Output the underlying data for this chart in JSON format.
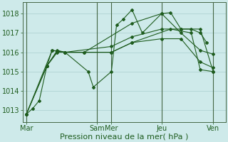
{
  "bg_color": "#ceeaea",
  "grid_color": "#aacece",
  "line_color": "#1e5c1e",
  "marker_color": "#1e5c1e",
  "xlabel": "Pression niveau de la mer( hPa )",
  "xlabel_fontsize": 8,
  "tick_fontsize": 7,
  "ylim": [
    1012.4,
    1018.6
  ],
  "yticks": [
    1013,
    1014,
    1015,
    1016,
    1017,
    1018
  ],
  "day_labels": [
    "Mar",
    "Sam",
    "Mer",
    "Jeu",
    "Ven"
  ],
  "day_positions": [
    0.0,
    5.5,
    6.6,
    10.5,
    14.5
  ],
  "xlim": [
    -0.3,
    15.5
  ],
  "vline_positions": [
    0.0,
    5.5,
    6.6,
    10.5,
    14.5
  ],
  "vline_color": "#446644",
  "series": [
    [
      0.0,
      1012.8,
      0.5,
      1013.1,
      1.0,
      1013.5,
      1.6,
      1015.3,
      2.0,
      1016.1,
      2.4,
      1016.05,
      3.0,
      1016.0,
      4.8,
      1015.0,
      5.2,
      1014.2,
      6.6,
      1015.0,
      7.0,
      1017.4,
      7.5,
      1017.7,
      8.2,
      1018.2,
      9.0,
      1017.0,
      10.5,
      1018.0,
      11.2,
      1018.05,
      12.0,
      1017.2,
      12.8,
      1017.2,
      13.5,
      1017.0,
      14.0,
      1016.5
    ],
    [
      0.0,
      1012.8,
      1.6,
      1015.3,
      2.4,
      1016.05,
      3.0,
      1016.0,
      6.6,
      1016.3,
      8.2,
      1016.8,
      10.5,
      1017.2,
      12.0,
      1017.2,
      13.5,
      1017.2,
      14.5,
      1015.0
    ],
    [
      0.0,
      1012.8,
      1.6,
      1015.3,
      2.4,
      1016.0,
      3.0,
      1016.0,
      6.6,
      1016.0,
      8.2,
      1016.5,
      10.5,
      1016.7,
      12.0,
      1016.7,
      13.5,
      1015.5,
      14.5,
      1015.2
    ],
    [
      0.0,
      1012.8,
      2.0,
      1016.1,
      3.0,
      1016.0,
      4.5,
      1016.0,
      6.6,
      1016.0,
      8.2,
      1016.5,
      11.2,
      1017.2,
      12.8,
      1017.0,
      13.5,
      1015.1,
      14.5,
      1015.0
    ],
    [
      1.6,
      1015.3,
      2.4,
      1016.1,
      3.0,
      1016.0,
      4.5,
      1016.0,
      8.2,
      1017.5,
      10.5,
      1018.0,
      12.0,
      1017.0,
      13.5,
      1016.1,
      14.5,
      1015.9
    ]
  ]
}
